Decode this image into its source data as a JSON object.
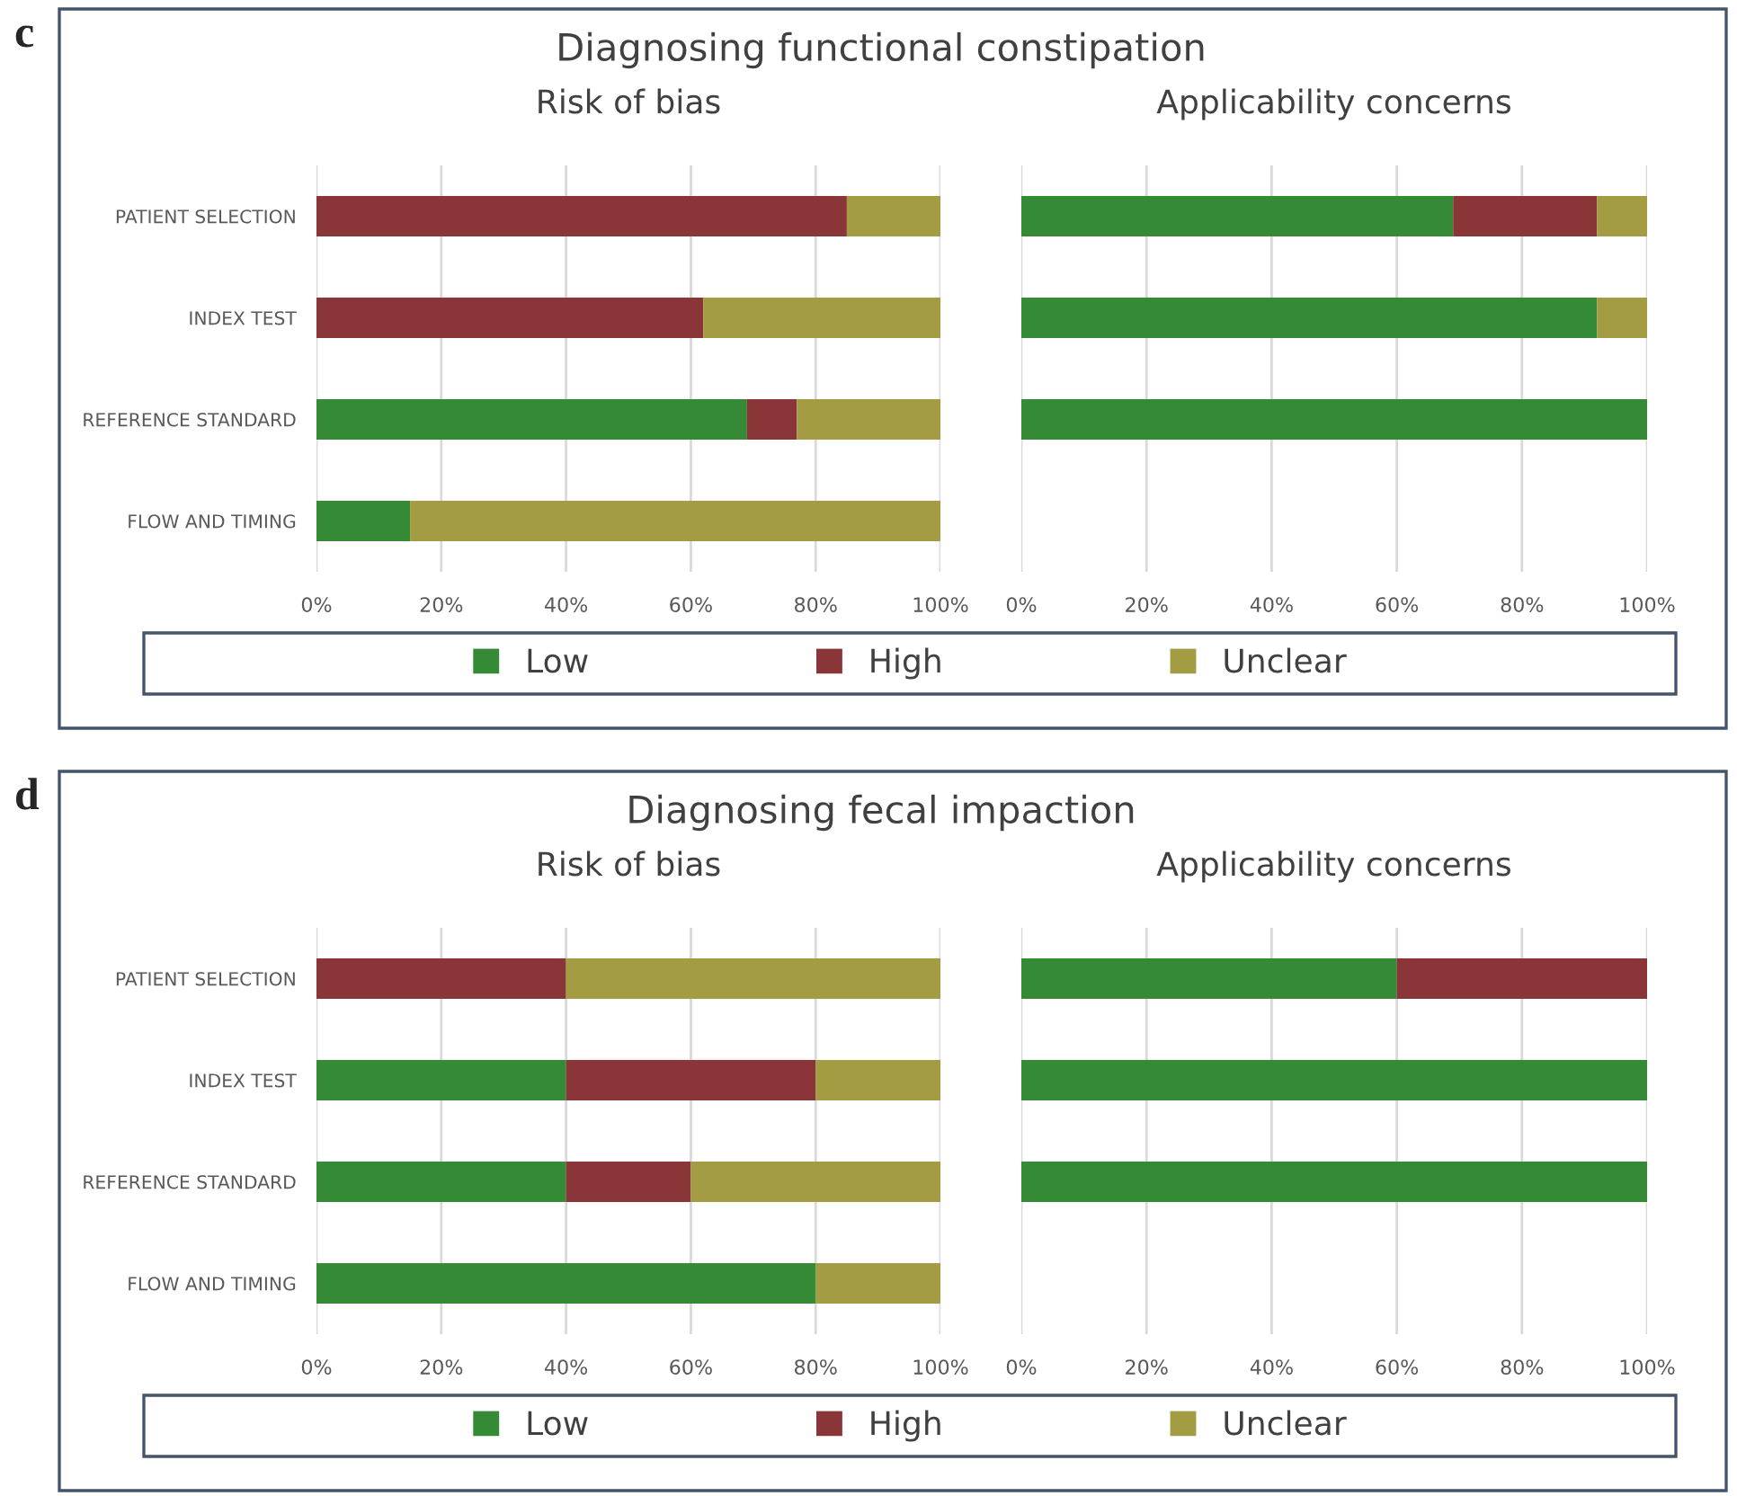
{
  "chart_data": [
    {
      "type": "bar",
      "title": "Diagnosing functional constipation",
      "subtitle": "Risk of bias",
      "annotations": [
        "c"
      ],
      "orientation": "horizontal",
      "stacked": true,
      "categories": [
        "PATIENT SELECTION",
        "INDEX TEST",
        "REFERENCE STANDARD",
        "FLOW AND TIMING"
      ],
      "series": [
        {
          "name": "Low",
          "color": "#348a35",
          "values": [
            0,
            0,
            69,
            15
          ]
        },
        {
          "name": "High",
          "color": "#8a3538",
          "values": [
            85,
            62,
            8,
            0
          ]
        },
        {
          "name": "Unclear",
          "color": "#a39c42",
          "values": [
            15,
            38,
            23,
            85
          ]
        }
      ],
      "xlim": [
        0,
        100
      ],
      "xticks": [
        {
          "value": 0,
          "label": "0%"
        },
        {
          "value": 20,
          "label": "20%"
        },
        {
          "value": 40,
          "label": "40%"
        },
        {
          "value": 60,
          "label": "60%"
        },
        {
          "value": 80,
          "label": "80%"
        },
        {
          "value": 100,
          "label": "100%"
        }
      ],
      "grid": "x",
      "legend": "bottom"
    },
    {
      "type": "bar",
      "subtitle": "Applicability concerns",
      "orientation": "horizontal",
      "stacked": true,
      "series": [
        {
          "color": "#348a35",
          "values": [
            69,
            92,
            100,
            null
          ]
        },
        {
          "color": "#8a3538",
          "values": [
            23,
            0,
            0,
            null
          ]
        },
        {
          "color": "#a39c42",
          "values": [
            8,
            8,
            0,
            null
          ]
        }
      ],
      "xlim": [
        0,
        100
      ],
      "xticks": [
        {
          "value": 0,
          "label": "0%"
        },
        {
          "value": 20,
          "label": "20%"
        },
        {
          "value": 40,
          "label": "40%"
        },
        {
          "value": 60,
          "label": "60%"
        },
        {
          "value": 80,
          "label": "80%"
        },
        {
          "value": 100,
          "label": "100%"
        }
      ],
      "grid": "x",
      "tick_labels": "x"
    },
    {
      "type": "bar",
      "title": "Diagnosing fecal impaction",
      "subtitle": "Risk of bias",
      "annotations": [
        "d"
      ],
      "orientation": "horizontal",
      "stacked": true,
      "categories": [
        "PATIENT SELECTION",
        "INDEX TEST",
        "REFERENCE STANDARD",
        "FLOW AND TIMING"
      ],
      "series": [
        {
          "name": "Low",
          "color": "#348a35",
          "values": [
            0,
            40,
            40,
            80
          ]
        },
        {
          "name": "High",
          "color": "#8a3538",
          "values": [
            40,
            40,
            20,
            0
          ]
        },
        {
          "name": "Unclear",
          "color": "#a39c42",
          "values": [
            60,
            20,
            40,
            20
          ]
        }
      ],
      "xlim": [
        0,
        100
      ],
      "xticks": [
        {
          "value": 0,
          "label": "0%"
        },
        {
          "value": 20,
          "label": "20%"
        },
        {
          "value": 40,
          "label": "40%"
        },
        {
          "value": 60,
          "label": "60%"
        },
        {
          "value": 80,
          "label": "80%"
        },
        {
          "value": 100,
          "label": "100%"
        }
      ],
      "grid": "x",
      "legend": "bottom"
    },
    {
      "type": "bar",
      "subtitle": "Applicability concerns",
      "orientation": "horizontal",
      "stacked": true,
      "series": [
        {
          "color": "#348a35",
          "values": [
            60,
            100,
            100,
            null
          ]
        },
        {
          "color": "#8a3538",
          "values": [
            40,
            0,
            0,
            null
          ]
        },
        {
          "color": "#a39c42",
          "values": [
            0,
            0,
            0,
            null
          ]
        }
      ],
      "xlim": [
        0,
        100
      ],
      "xticks": [
        {
          "value": 0,
          "label": "0%"
        },
        {
          "value": 20,
          "label": "20%"
        },
        {
          "value": 40,
          "label": "40%"
        },
        {
          "value": 60,
          "label": "60%"
        },
        {
          "value": 80,
          "label": "80%"
        },
        {
          "value": 100,
          "label": "100%"
        }
      ],
      "grid": "x",
      "tick_labels": "x"
    }
  ]
}
